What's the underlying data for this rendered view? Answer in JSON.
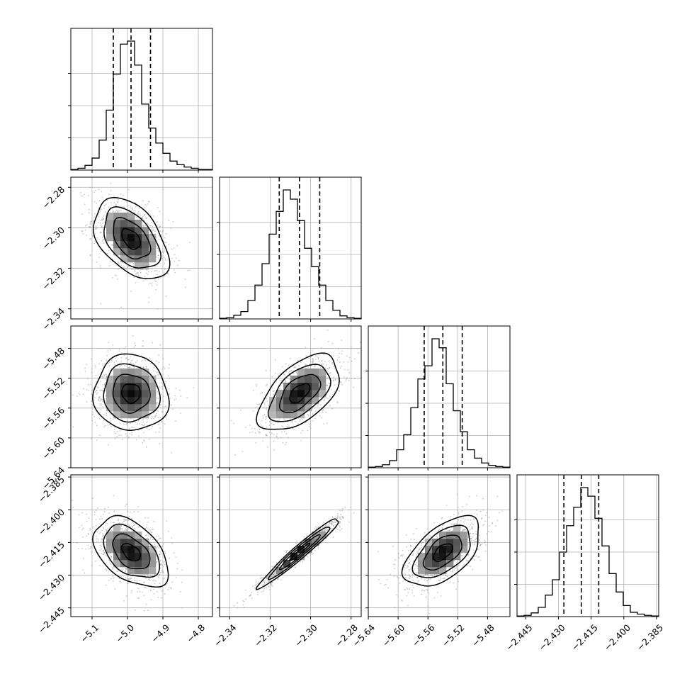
{
  "chart_data": {
    "type": "corner",
    "parameters": [
      {
        "range": [
          -5.16,
          -4.76
        ],
        "ticks": [
          -5.1,
          -5.0,
          -4.9,
          -4.8
        ],
        "tick_labels": [
          "−5.1",
          "−5.0",
          "−4.9",
          "−4.8"
        ],
        "quantiles": [
          -5.04,
          -4.99,
          -4.935
        ]
      },
      {
        "range": [
          -2.345,
          -2.275
        ],
        "ticks": [
          -2.34,
          -2.32,
          -2.3,
          -2.28
        ],
        "tick_labels": [
          "−2.34",
          "−2.32",
          "−2.30",
          "−2.28"
        ],
        "quantiles": [
          -2.3155,
          -2.3055,
          -2.2955
        ]
      },
      {
        "range": [
          -5.64,
          -5.45
        ],
        "ticks": [
          -5.64,
          -5.6,
          -5.56,
          -5.52,
          -5.48
        ],
        "tick_labels": [
          "−5.64",
          "−5.60",
          "−5.56",
          "−5.52",
          "−5.48"
        ],
        "quantiles": [
          -5.565,
          -5.54,
          -5.514
        ]
      },
      {
        "range": [
          -2.449,
          -2.384
        ],
        "ticks": [
          -2.445,
          -2.43,
          -2.415,
          -2.4,
          -2.385
        ],
        "tick_labels": [
          "−2.445",
          "−2.430",
          "−2.415",
          "−2.400",
          "−2.385"
        ],
        "quantiles": [
          -2.4275,
          -2.4195,
          -2.4115
        ]
      }
    ],
    "histograms": [
      [
        1,
        3,
        8,
        20,
        50,
        100,
        160,
        210,
        215,
        175,
        110,
        70,
        45,
        28,
        15,
        9,
        5,
        3,
        1,
        1
      ],
      [
        1,
        2,
        6,
        12,
        30,
        55,
        90,
        138,
        175,
        210,
        195,
        160,
        115,
        85,
        55,
        30,
        14,
        5,
        2,
        1
      ],
      [
        1,
        2,
        5,
        12,
        30,
        55,
        100,
        148,
        170,
        215,
        200,
        140,
        95,
        60,
        30,
        16,
        8,
        4,
        2,
        1
      ],
      [
        1,
        2,
        6,
        15,
        35,
        60,
        105,
        148,
        178,
        210,
        196,
        160,
        115,
        70,
        40,
        18,
        7,
        4,
        2,
        1
      ]
    ],
    "pairs": [
      {
        "row": 1,
        "col": 0,
        "correlation": -0.45
      },
      {
        "row": 2,
        "col": 0,
        "correlation": -0.05
      },
      {
        "row": 2,
        "col": 1,
        "correlation": 0.55
      },
      {
        "row": 3,
        "col": 0,
        "correlation": -0.45
      },
      {
        "row": 3,
        "col": 1,
        "correlation": 0.97
      },
      {
        "row": 3,
        "col": 2,
        "correlation": 0.55
      }
    ],
    "contour_levels": [
      "0.5-sigma",
      "1-sigma",
      "1.5-sigma",
      "2-sigma"
    ],
    "grid": true,
    "legend": "none"
  }
}
